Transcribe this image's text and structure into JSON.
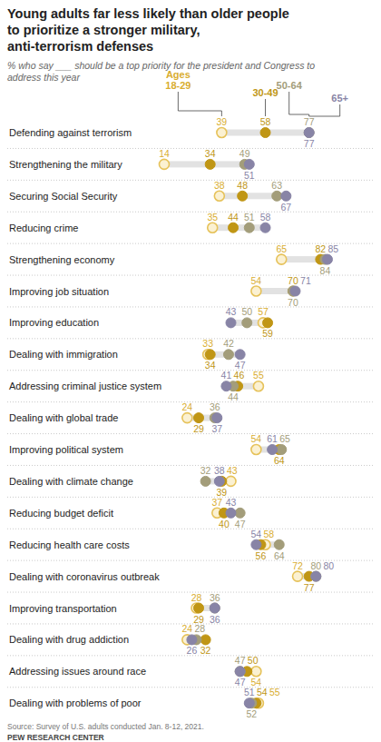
{
  "chart_data": {
    "type": "dot",
    "orientation": "horizontal",
    "title": "Young adults far less likely than older people to prioritize a stronger military, anti-terrorism defenses",
    "subtitle": "% who say ___ should be a top priority for the president and Congress to address this year",
    "source": "Source: Survey of U.S. adults conducted Jan. 8-12, 2021.",
    "credit": "PEW RESEARCH CENTER",
    "xlim": [
      0,
      100
    ],
    "tick_labels": false,
    "data_labels": true,
    "grid": false,
    "categories": [
      "Defending against terrorism",
      "Strengthening the military",
      "Securing Social Security",
      "Reducing crime",
      "Strengthening economy",
      "Improving job situation",
      "Improving education",
      "Dealing with immigration",
      "Addressing criminal justice system",
      "Dealing with global trade",
      "Improving political system",
      "Dealing with climate change",
      "Reducing budget deficit",
      "Reducing health care costs",
      "Dealing with coronavirus outbreak",
      "Improving transportation",
      "Dealing with drug addiction",
      "Addressing issues around race",
      "Dealing with problems of poor"
    ],
    "series": [
      {
        "name": "Ages 18-29",
        "color": "#e6c25a",
        "values": [
          39,
          14,
          38,
          35,
          65,
          54,
          57,
          33,
          55,
          24,
          54,
          43,
          37,
          58,
          72,
          28,
          24,
          54,
          55
        ]
      },
      {
        "name": "30-49",
        "color": "#c09615",
        "values": [
          58,
          34,
          48,
          44,
          82,
          70,
          59,
          34,
          46,
          29,
          64,
          39,
          40,
          56,
          77,
          29,
          32,
          50,
          54
        ]
      },
      {
        "name": "50-64",
        "color": "#a39d7a",
        "values": [
          77,
          49,
          63,
          51,
          84,
          70,
          50,
          42,
          44,
          36,
          65,
          32,
          47,
          64,
          80,
          36,
          28,
          47,
          52
        ]
      },
      {
        "name": "65+",
        "color": "#8884a6",
        "values": [
          77,
          51,
          67,
          58,
          85,
          71,
          43,
          47,
          41,
          37,
          61,
          38,
          43,
          54,
          80,
          36,
          26,
          47,
          51
        ]
      }
    ]
  }
}
